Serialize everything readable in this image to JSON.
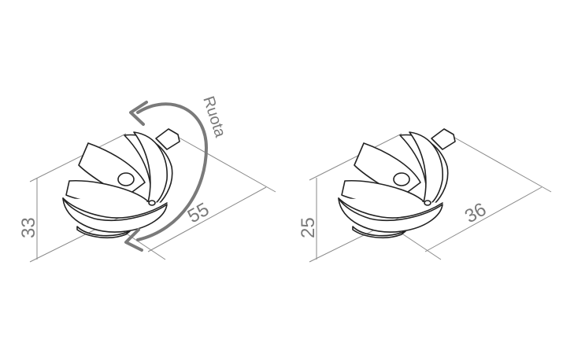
{
  "colors": {
    "line": "#222222",
    "dimension": "#8a8a8a",
    "arrow": "#7a7a7a",
    "background": "#ffffff"
  },
  "left_view": {
    "rotation_label": "Ruota",
    "height_label": "33",
    "length_label": "55"
  },
  "right_view": {
    "height_label": "25",
    "length_label": "36"
  }
}
